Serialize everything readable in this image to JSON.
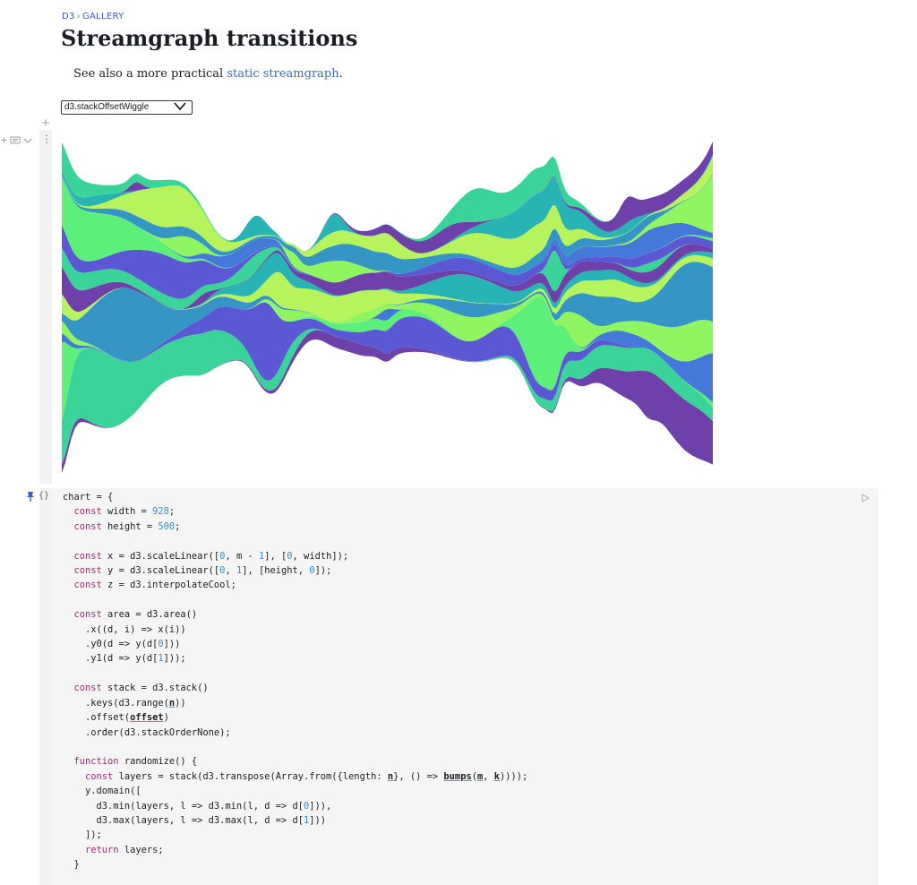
{
  "breadcrumb": {
    "root": "D3",
    "separator": "›",
    "section": "GALLERY"
  },
  "page": {
    "title": "Streamgraph transitions",
    "subtitle_prefix": "See also a more practical ",
    "subtitle_link": "static streamgraph",
    "subtitle_suffix": "."
  },
  "offset_select": {
    "value": "d3.stackOffsetWiggle"
  },
  "icons": {
    "add_cell": "plus-icon",
    "cell_menu": "kebab-icon",
    "pin": "pin-icon",
    "braces": "braces-icon",
    "run": "play-icon"
  },
  "chart_data": {
    "type": "area",
    "offset": "wiggle",
    "layers": 20,
    "samples": 200,
    "colors": [
      "#6e40aa",
      "#5b58d3",
      "#4479d9",
      "#3596c6",
      "#28b4b4",
      "#3ad49a",
      "#5cf07b",
      "#8ff561",
      "#b6f35c"
    ]
  },
  "code": {
    "lines": [
      "chart = {",
      "  const width = 928;",
      "  const height = 500;",
      "",
      "  const x = d3.scaleLinear([0, m - 1], [0, width]);",
      "  const y = d3.scaleLinear([0, 1], [height, 0]);",
      "  const z = d3.interpolateCool;",
      "",
      "  const area = d3.area()",
      "    .x((d, i) => x(i))",
      "    .y0(d => y(d[0]))",
      "    .y1(d => y(d[1]));",
      "",
      "  const stack = d3.stack()",
      "    .keys(d3.range(n))",
      "    .offset(offset)",
      "    .order(d3.stackOrderNone);",
      "",
      "  function randomize() {",
      "    const layers = stack(d3.transpose(Array.from({length: n}, () => bumps(m, k))));",
      "    y.domain([",
      "      d3.min(layers, l => d3.min(l, d => d[0])),",
      "      d3.max(layers, l => d3.max(l, d => d[1]))",
      "    ]);",
      "    return layers;",
      "  }"
    ]
  }
}
